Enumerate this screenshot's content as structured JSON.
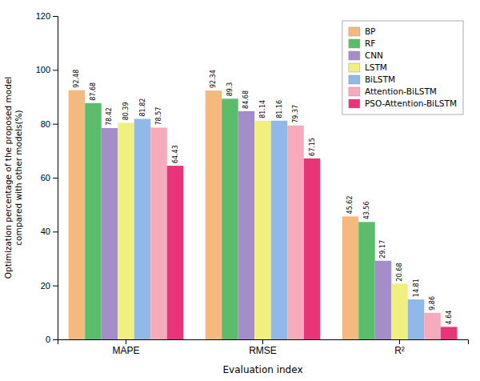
{
  "chart_data": {
    "type": "bar",
    "categories": [
      "MAPE",
      "RMSE",
      "R²"
    ],
    "series": [
      {
        "name": "BP",
        "color": "#F5B97F",
        "values": [
          92.48,
          92.34,
          45.62
        ]
      },
      {
        "name": "RF",
        "color": "#5BBD6B",
        "values": [
          87.68,
          89.3,
          43.56
        ]
      },
      {
        "name": "CNN",
        "color": "#A48DC8",
        "values": [
          78.42,
          84.68,
          29.17
        ]
      },
      {
        "name": "LSTM",
        "color": "#F0F080",
        "values": [
          80.39,
          81.14,
          20.68
        ]
      },
      {
        "name": "BiLSTM",
        "color": "#90B8E8",
        "values": [
          81.82,
          81.16,
          14.81
        ]
      },
      {
        "name": "Attention-BiLSTM",
        "color": "#F5ABBC",
        "values": [
          78.57,
          79.37,
          9.86
        ]
      },
      {
        "name": "PSO-Attention-BiLSTM",
        "color": "#E8357A",
        "values": [
          64.43,
          67.15,
          4.64
        ]
      }
    ],
    "xlabel": "Evaluation index",
    "ylabel": "Optimization percentage of the proposed model\ncompared with other models(%)",
    "ylim": [
      0,
      120
    ],
    "yticks": [
      0,
      20,
      40,
      60,
      80,
      100,
      120
    ],
    "grid": false,
    "legend": "upper right",
    "data_labels": true
  }
}
